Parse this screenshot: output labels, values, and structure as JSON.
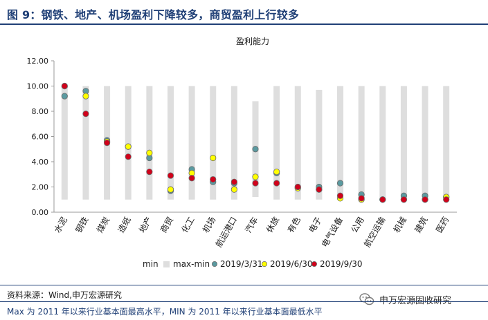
{
  "header": {
    "title": "图 9：钢铁、地产、机场盈利下降较多，商贸盈利上行较多"
  },
  "footer": {
    "source": "资料来源：Wind,申万宏源研究",
    "note": "Max 为 2011 年以来行业基本面最高水平，MIN 为 2011 年以来行业基本面最低水平",
    "brand": "申万宏源固收研究",
    "brand_icon": "wechat-icon"
  },
  "colors": {
    "bar": "#dedede",
    "s2019_03_31": "#5b9aa0",
    "s2019_06_30": "#ffff00",
    "s2019_09_30": "#d0021b",
    "title": "#1f3f76"
  },
  "chart_data": {
    "type": "scatter",
    "title": "盈利能力",
    "ylim": [
      0,
      12
    ],
    "yticks": [
      "0.00",
      "2.00",
      "4.00",
      "6.00",
      "8.00",
      "10.00",
      "12.00"
    ],
    "categories": [
      "水泥",
      "钢铁",
      "煤炭",
      "造纸",
      "地产",
      "商贸",
      "化工",
      "机场",
      "航运港口",
      "汽车",
      "休旅",
      "有色",
      "电子",
      "电气设备",
      "公用",
      "航空运输",
      "机械",
      "建筑",
      "医药"
    ],
    "min": [
      1.0,
      1.0,
      1.0,
      1.0,
      1.0,
      1.0,
      1.0,
      1.0,
      1.0,
      1.2,
      1.0,
      1.0,
      1.0,
      1.0,
      1.0,
      1.0,
      1.0,
      1.0,
      1.0
    ],
    "max": [
      10.0,
      10.0,
      10.0,
      10.0,
      10.0,
      10.0,
      10.0,
      10.0,
      10.0,
      8.8,
      10.0,
      10.0,
      9.7,
      10.0,
      10.0,
      10.0,
      10.0,
      10.0,
      10.0
    ],
    "series": [
      {
        "name": "2019/3/31",
        "values": [
          9.2,
          9.6,
          5.7,
          5.2,
          4.3,
          1.7,
          3.4,
          2.4,
          2.3,
          5.0,
          3.1,
          2.0,
          2.0,
          2.3,
          1.4,
          1.0,
          1.3,
          1.3,
          1.2
        ]
      },
      {
        "name": "2019/6/30",
        "values": [
          10.0,
          9.2,
          5.6,
          5.2,
          4.7,
          1.8,
          3.1,
          4.3,
          1.8,
          2.8,
          3.2,
          1.9,
          1.8,
          1.1,
          1.0,
          1.0,
          1.0,
          1.0,
          1.2
        ]
      },
      {
        "name": "2019/9/30",
        "values": [
          10.0,
          7.8,
          5.5,
          4.4,
          3.2,
          2.9,
          2.7,
          2.6,
          2.4,
          2.3,
          2.3,
          2.0,
          1.8,
          1.3,
          1.1,
          1.0,
          1.0,
          1.0,
          1.0
        ]
      }
    ],
    "legend": {
      "placement": "bottom",
      "items": [
        "min",
        "max-min",
        "2019/3/31",
        "2019/6/30",
        "2019/9/30"
      ]
    },
    "grid": false
  }
}
